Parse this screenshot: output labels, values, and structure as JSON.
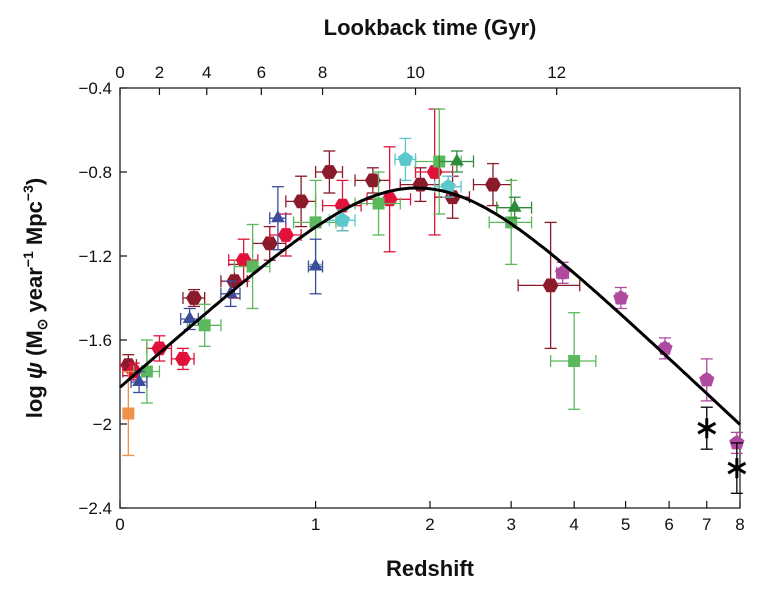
{
  "chart_data": {
    "type": "scatter",
    "title": "",
    "xlabel": "Redshift",
    "top_xlabel": "Lookback time (Gyr)",
    "ylabel_parts": {
      "pre": "log ",
      "psi": "ψ",
      "paren_open": " (M",
      "sun": "⊙",
      "year": " year",
      "exp1": "−1",
      "mpc": " Mpc",
      "exp3": "−3",
      "paren_close": ")"
    },
    "x_scale": "log(1+z)",
    "xlim": [
      0,
      8
    ],
    "ylim": [
      -2.4,
      -0.4
    ],
    "x_ticks": [
      {
        "value": 0,
        "label": "0"
      },
      {
        "value": 1,
        "label": "1"
      },
      {
        "value": 2,
        "label": "2"
      },
      {
        "value": 3,
        "label": "3"
      },
      {
        "value": 4,
        "label": "4"
      },
      {
        "value": 5,
        "label": "5"
      },
      {
        "value": 6,
        "label": "6"
      },
      {
        "value": 7,
        "label": "7"
      },
      {
        "value": 8,
        "label": "8"
      }
    ],
    "y_ticks": [
      {
        "value": -0.4,
        "label": "−0.4"
      },
      {
        "value": -0.8,
        "label": "−0.8"
      },
      {
        "value": -1.2,
        "label": "−1.2"
      },
      {
        "value": -1.6,
        "label": "−1.6"
      },
      {
        "value": -2.0,
        "label": "−2"
      },
      {
        "value": -2.4,
        "label": "−2.4"
      }
    ],
    "top_ticks": [
      {
        "label": "0",
        "z": 0.0
      },
      {
        "label": "2",
        "z": 0.15
      },
      {
        "label": "4",
        "z": 0.36
      },
      {
        "label": "6",
        "z": 0.65
      },
      {
        "label": "8",
        "z": 1.05
      },
      {
        "label": "10",
        "z": 1.85
      },
      {
        "label": "12",
        "z": 3.7
      }
    ],
    "fit_curve": {
      "equation": "0.015 (1+z)^2.7 / (1 + ((1+z)/2.9)^5.6)",
      "color": "#000000"
    },
    "colors": {
      "dark_red": "#8b1a2b",
      "red": "#e0123a",
      "green": "#5cb85c",
      "dark_green": "#2e8b3a",
      "blue": "#3b4d9c",
      "cyan": "#5bc8cc",
      "orange": "#f0914a",
      "purple": "#b04aa0",
      "black": "#000000"
    },
    "series": [
      {
        "color": "dark_red",
        "marker": "hexagon",
        "points": [
          {
            "x": 0.03,
            "y": -1.72,
            "xe": 0.03,
            "ye": 0.05
          },
          {
            "x": 0.3,
            "y": -1.4,
            "xe": 0.05,
            "ye": 0.04
          },
          {
            "x": 0.5,
            "y": -1.32,
            "xe": 0.07,
            "ye": 0.08
          },
          {
            "x": 0.7,
            "y": -1.14,
            "xe": 0.1,
            "ye": 0.08
          },
          {
            "x": 0.9,
            "y": -0.94,
            "xe": 0.1,
            "ye": 0.12
          },
          {
            "x": 1.1,
            "y": -0.8,
            "xe": 0.1,
            "ye": 0.1
          },
          {
            "x": 1.45,
            "y": -0.84,
            "xe": 0.15,
            "ye": 0.06
          },
          {
            "x": 1.9,
            "y": -0.86,
            "xe": 0.2,
            "ye": 0.08
          },
          {
            "x": 2.25,
            "y": -0.92,
            "xe": 0.2,
            "ye": 0.1
          },
          {
            "x": 2.75,
            "y": -0.86,
            "xe": 0.25,
            "ye": 0.1
          },
          {
            "x": 3.6,
            "y": -1.34,
            "xe": 0.5,
            "ye": 0.3
          }
        ]
      },
      {
        "color": "red",
        "marker": "hexagon",
        "points": [
          {
            "x": 0.05,
            "y": -1.75,
            "xe": 0.04,
            "ye": 0.04
          },
          {
            "x": 0.15,
            "y": -1.64,
            "xe": 0.05,
            "ye": 0.06
          },
          {
            "x": 0.25,
            "y": -1.69,
            "xe": 0.05,
            "ye": 0.05
          },
          {
            "x": 0.55,
            "y": -1.22,
            "xe": 0.08,
            "ye": 0.1
          },
          {
            "x": 0.8,
            "y": -1.1,
            "xe": 0.1,
            "ye": 0.1
          },
          {
            "x": 1.2,
            "y": -0.96,
            "xe": 0.15,
            "ye": 0.12
          },
          {
            "x": 1.6,
            "y": -0.93,
            "xe": 0.2,
            "ye": 0.25
          },
          {
            "x": 2.05,
            "y": -0.8,
            "xe": 0.2,
            "ye": 0.3
          }
        ]
      },
      {
        "color": "green",
        "marker": "square",
        "points": [
          {
            "x": 0.1,
            "y": -1.75,
            "xe": 0.05,
            "ye": 0.15
          },
          {
            "x": 0.35,
            "y": -1.53,
            "xe": 0.08,
            "ye": 0.1
          },
          {
            "x": 0.6,
            "y": -1.25,
            "xe": 0.1,
            "ye": 0.2
          },
          {
            "x": 1.0,
            "y": -1.04,
            "xe": 0.15,
            "ye": 0.2
          },
          {
            "x": 1.5,
            "y": -0.95,
            "xe": 0.2,
            "ye": 0.15
          },
          {
            "x": 2.1,
            "y": -0.75,
            "xe": 0.25,
            "ye": 0.25
          },
          {
            "x": 3.0,
            "y": -1.04,
            "xe": 0.3,
            "ye": 0.2
          },
          {
            "x": 4.0,
            "y": -1.7,
            "xe": 0.4,
            "ye": 0.23
          }
        ]
      },
      {
        "color": "dark_green",
        "marker": "triangle",
        "points": [
          {
            "x": 2.3,
            "y": -0.75,
            "xe": 0.2,
            "ye": 0.05
          },
          {
            "x": 3.05,
            "y": -0.97,
            "xe": 0.25,
            "ye": 0.05
          }
        ]
      },
      {
        "color": "blue",
        "marker": "triangle",
        "points": [
          {
            "x": 0.07,
            "y": -1.8,
            "xe": 0.03,
            "ye": 0.05
          },
          {
            "x": 0.28,
            "y": -1.5,
            "xe": 0.04,
            "ye": 0.05
          },
          {
            "x": 0.48,
            "y": -1.38,
            "xe": 0.05,
            "ye": 0.06
          },
          {
            "x": 0.75,
            "y": -1.02,
            "xe": 0.05,
            "ye": 0.15
          },
          {
            "x": 1.0,
            "y": -1.25,
            "xe": 0.05,
            "ye": 0.13
          }
        ]
      },
      {
        "color": "cyan",
        "marker": "pentagon",
        "points": [
          {
            "x": 1.2,
            "y": -1.03,
            "xe": 0.1,
            "ye": 0.05
          },
          {
            "x": 1.75,
            "y": -0.74,
            "xe": 0.1,
            "ye": 0.1
          },
          {
            "x": 2.2,
            "y": -0.87,
            "xe": 0.15,
            "ye": 0.05
          }
        ]
      },
      {
        "color": "orange",
        "marker": "square",
        "points": [
          {
            "x": 0.03,
            "y": -1.95,
            "xe": 0,
            "ye": 0.2
          }
        ]
      },
      {
        "color": "purple",
        "marker": "pentagon",
        "points": [
          {
            "x": 3.8,
            "y": -1.28,
            "xe": 0.1,
            "ye": 0.05
          },
          {
            "x": 4.9,
            "y": -1.4,
            "xe": 0.1,
            "ye": 0.05
          },
          {
            "x": 5.9,
            "y": -1.64,
            "xe": 0.1,
            "ye": 0.05
          },
          {
            "x": 7.0,
            "y": -1.79,
            "xe": 0.1,
            "ye": 0.1
          },
          {
            "x": 7.9,
            "y": -2.09,
            "xe": 0.1,
            "ye": 0.05
          }
        ]
      },
      {
        "color": "black",
        "marker": "star",
        "points": [
          {
            "x": 7.0,
            "y": -2.02,
            "xe": 0,
            "ye": 0.1
          },
          {
            "x": 7.9,
            "y": -2.21,
            "xe": 0,
            "ye": 0.12
          }
        ]
      }
    ]
  }
}
